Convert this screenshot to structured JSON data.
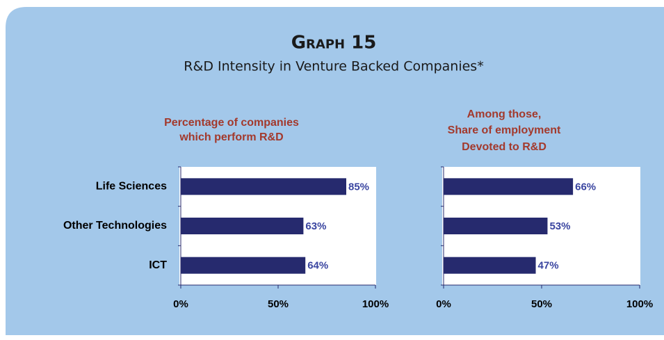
{
  "title": "Graph 15",
  "subtitle": "R&D Intensity in Venture Backed Companies*",
  "chart_data": [
    {
      "type": "bar",
      "orientation": "horizontal",
      "title": [
        "Percentage of companies",
        "which perform R&D"
      ],
      "categories": [
        "Life Sciences",
        "Other Technologies",
        "ICT"
      ],
      "values": [
        85,
        63,
        64
      ],
      "value_labels": [
        "85%",
        "63%",
        "64%"
      ],
      "color": "#262a6e",
      "xlim": [
        0,
        100
      ],
      "xticks": [
        {
          "value": 0,
          "label": "0%"
        },
        {
          "value": 50,
          "label": "50%"
        },
        {
          "value": 100,
          "label": "100%"
        }
      ]
    },
    {
      "type": "bar",
      "orientation": "horizontal",
      "title": [
        "Among those,",
        "Share of employment",
        "Devoted to R&D"
      ],
      "values": [
        66,
        53,
        47
      ],
      "value_labels": [
        "66%",
        "53%",
        "47%"
      ],
      "color": "#262a6e",
      "xlim": [
        0,
        100
      ],
      "xticks": [
        {
          "value": 0,
          "label": "0%"
        },
        {
          "value": 50,
          "label": "50%"
        },
        {
          "value": 100,
          "label": "100%"
        }
      ]
    }
  ]
}
